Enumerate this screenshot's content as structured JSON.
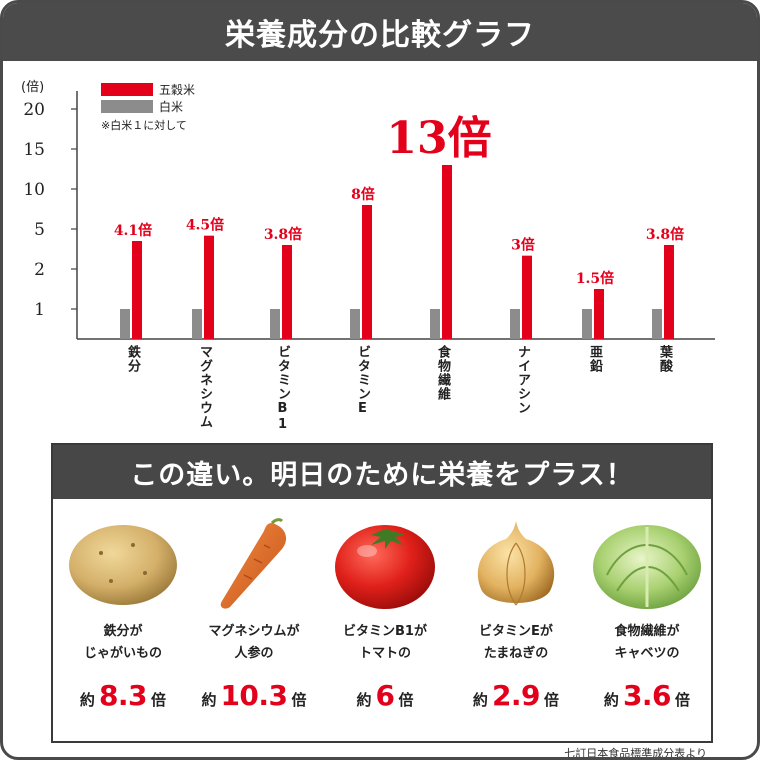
{
  "header": {
    "title": "栄養成分の比較グラフ"
  },
  "chart_data": {
    "type": "bar",
    "yunit": "(倍)",
    "y_ticks": [
      1,
      2,
      5,
      10,
      15,
      20
    ],
    "categories": [
      "鉄分",
      "マグネシウム",
      "ビタミンB1",
      "ビタミンE",
      "食物繊維",
      "ナイアシン",
      "亜鉛",
      "葉酸"
    ],
    "series": [
      {
        "name": "五穀米",
        "color": "#e3001b",
        "values": [
          4.1,
          4.5,
          3.8,
          8,
          13,
          3,
          1.5,
          3.8
        ]
      },
      {
        "name": "白米",
        "color": "#8c8c8c",
        "values": [
          1,
          1,
          1,
          1,
          1,
          1,
          1,
          1
        ]
      }
    ],
    "data_labels": [
      "4.1倍",
      "4.5倍",
      "3.8倍",
      "8倍",
      "13倍",
      "3倍",
      "1.5倍",
      "3.8倍"
    ],
    "legend_note": "※白米１に対して",
    "legend_position": "top-left",
    "grid": false
  },
  "panel": {
    "banner": "この違い。明日のために栄養をプラス！",
    "items": [
      {
        "line1": "鉄分が",
        "line2": "じゃがいもの",
        "prefix": "約",
        "value": "8.3",
        "suffix": "倍",
        "icon": "potato-icon"
      },
      {
        "line1": "マグネシウムが",
        "line2": "人参の",
        "prefix": "約",
        "value": "10.3",
        "suffix": "倍",
        "icon": "carrot-icon"
      },
      {
        "line1": "ビタミンB1が",
        "line2": "トマトの",
        "prefix": "約",
        "value": "6",
        "suffix": "倍",
        "icon": "tomato-icon"
      },
      {
        "line1": "ビタミンEが",
        "line2": "たまねぎの",
        "prefix": "約",
        "value": "2.9",
        "suffix": "倍",
        "icon": "onion-icon"
      },
      {
        "line1": "食物繊維が",
        "line2": "キャベツの",
        "prefix": "約",
        "value": "3.6",
        "suffix": "倍",
        "icon": "cabbage-icon"
      }
    ]
  },
  "source": "七訂日本食品標準成分表より"
}
